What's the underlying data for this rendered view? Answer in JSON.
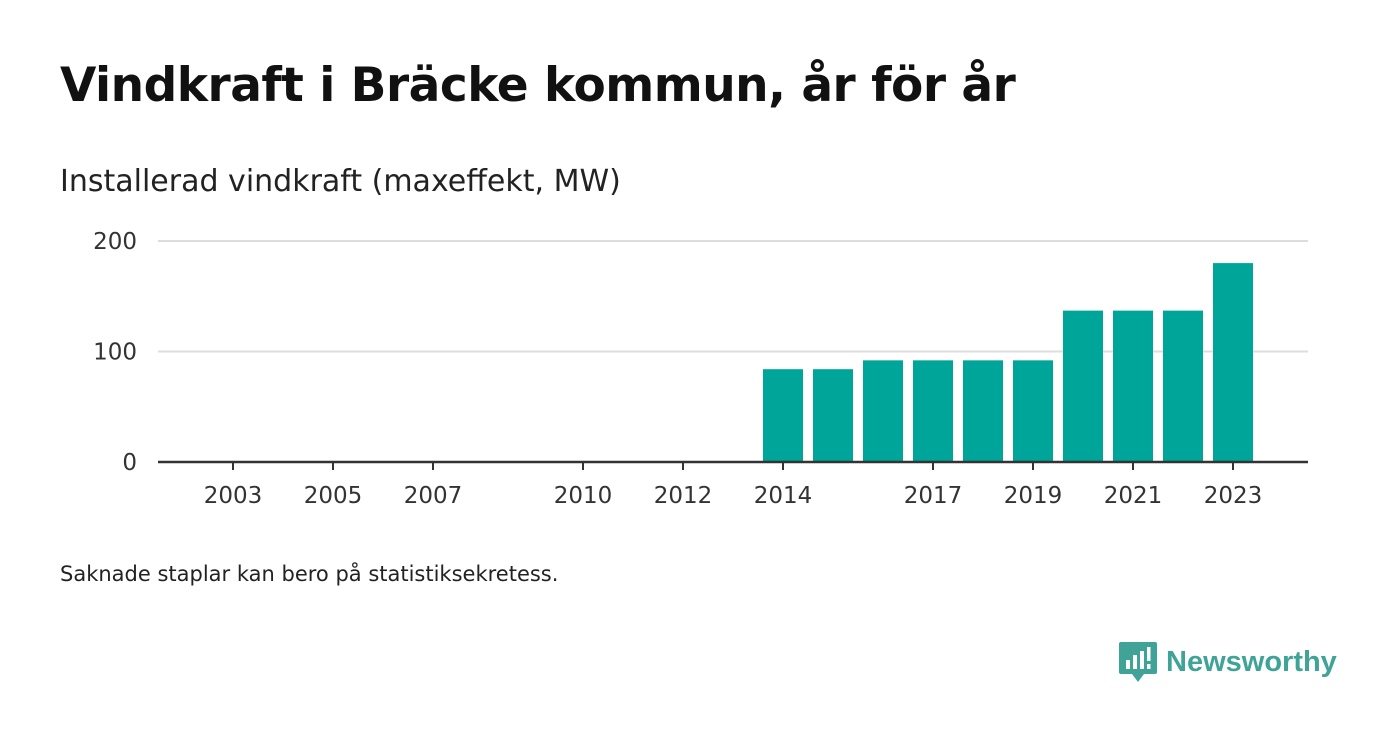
{
  "title": "Vindkraft i Bräcke kommun, år för år",
  "subtitle": "Installerad vindkraft (maxeffekt, MW)",
  "footnote": "Saknade staplar kan bero på statistiksekretess.",
  "brand": {
    "name": "Newsworthy",
    "icon": "newsworthy-logo-icon"
  },
  "colors": {
    "bar": "#00a59a",
    "grid": "#dddddd",
    "axis": "#333333",
    "brand": "#3fa397"
  },
  "chart_data": {
    "type": "bar",
    "title": "Vindkraft i Bräcke kommun, år för år",
    "ylabel": "Installerad vindkraft (maxeffekt, MW)",
    "xlabel": "",
    "x": [
      2014,
      2015,
      2016,
      2017,
      2018,
      2019,
      2020,
      2021,
      2022,
      2023
    ],
    "values": [
      84,
      84,
      92,
      92,
      92,
      92,
      137,
      137,
      137,
      180
    ],
    "xlim": [
      2001.5,
      2024.5
    ],
    "ylim": [
      0,
      200
    ],
    "xticks": [
      2003,
      2005,
      2007,
      2010,
      2012,
      2014,
      2017,
      2019,
      2021,
      2023
    ],
    "yticks": [
      0,
      100,
      200
    ],
    "grid": true,
    "legend": "none"
  }
}
